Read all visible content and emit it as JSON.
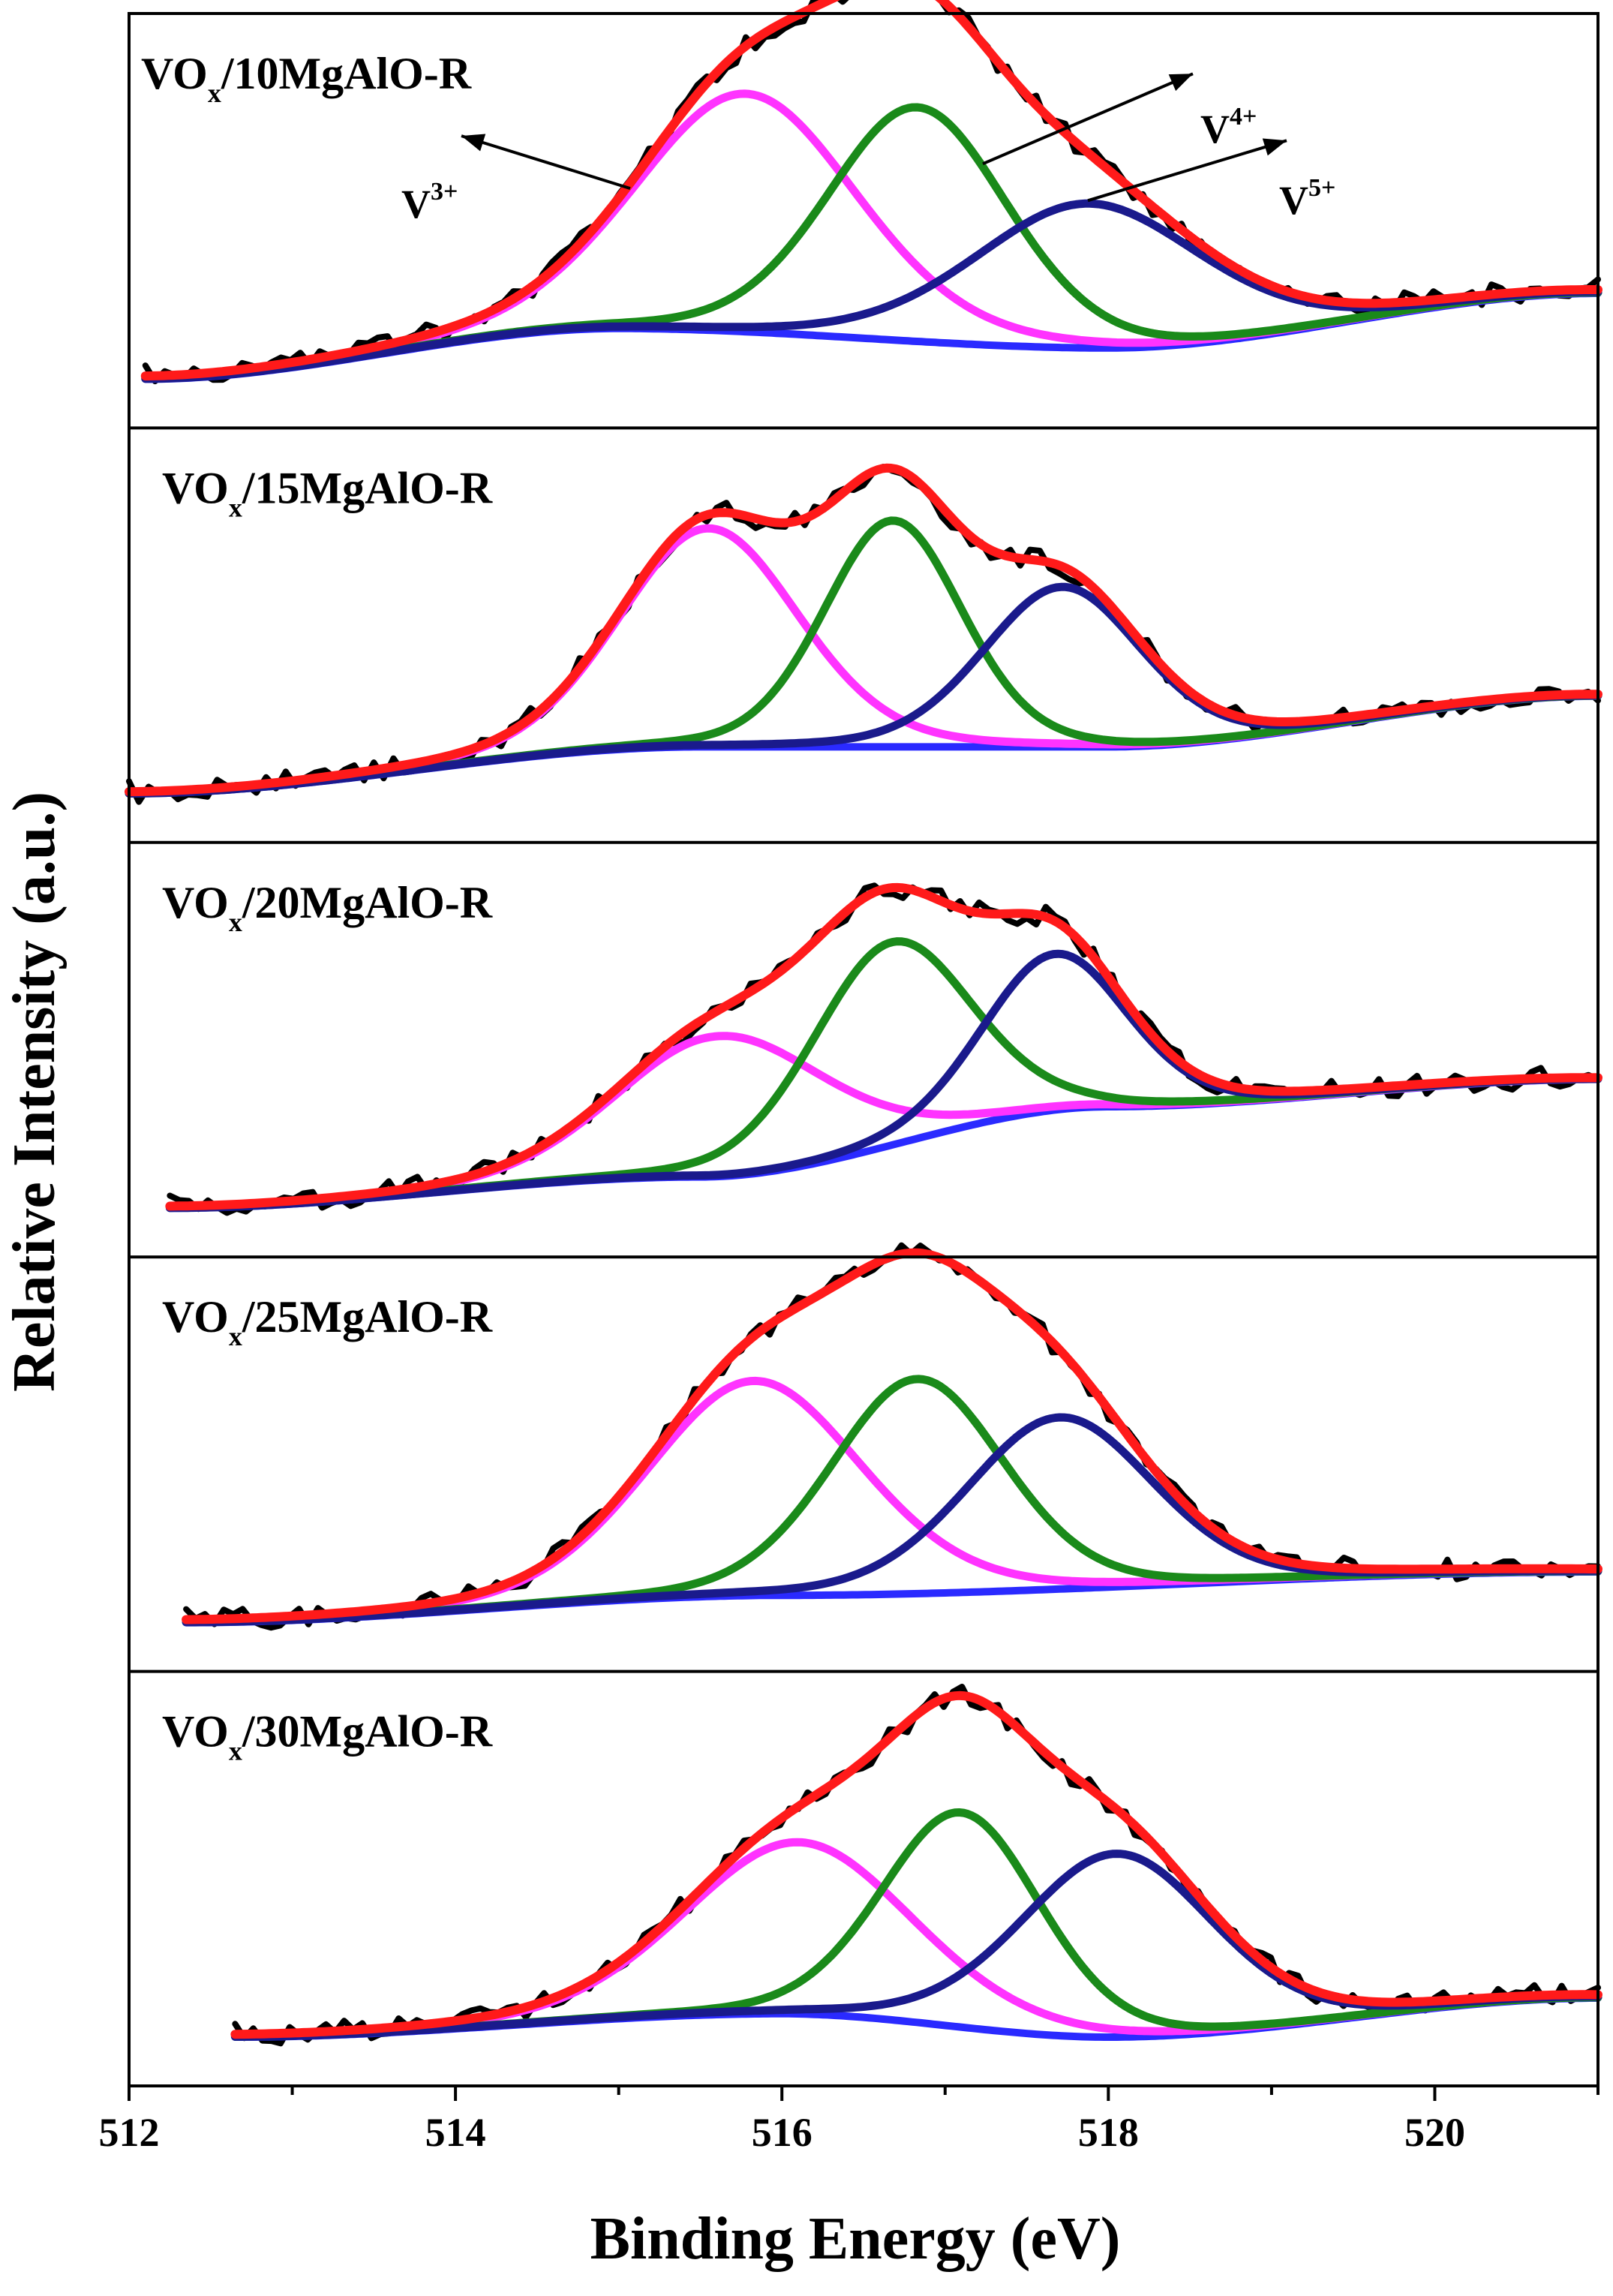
{
  "chart_data": {
    "type": "line",
    "xlabel": "Binding Energy (eV)",
    "ylabel": "Relative Intensity (a.u.)",
    "xlim": [
      512,
      521
    ],
    "xticks": [
      "512",
      "514",
      "516",
      "518",
      "520"
    ],
    "grid": false,
    "colors": {
      "raw": "#000000",
      "envelope": "#ff1a1a",
      "V3+": "#ff33ff",
      "V4+": "#1a8a1a",
      "V5+": "#1a1a8c",
      "background": "#2a2aff"
    },
    "annotations": [
      {
        "label": "V",
        "sup": "3+",
        "panel": 0,
        "peak": "V3+"
      },
      {
        "label": "V",
        "sup": "4+",
        "panel": 0,
        "peak": "V4+"
      },
      {
        "label": "V",
        "sup": "5+",
        "panel": 0,
        "peak": "V5+"
      }
    ],
    "panels": [
      {
        "title_main": "VO",
        "title_sub": "x",
        "title_rest": "/10MgAlO-R",
        "x_start": 512.1,
        "background": [
          [
            512.1,
            0.0
          ],
          [
            515.0,
            0.13
          ],
          [
            518.0,
            0.08
          ],
          [
            521.0,
            0.22
          ]
        ],
        "peaks": [
          {
            "name": "V3+",
            "center": 515.78,
            "height": 0.61,
            "fwhm": 1.6
          },
          {
            "name": "V4+",
            "center": 516.83,
            "height": 0.6,
            "fwhm": 1.3
          },
          {
            "name": "V5+",
            "center": 517.88,
            "height": 0.37,
            "fwhm": 1.65
          }
        ]
      },
      {
        "title_main": "VO",
        "title_sub": "x",
        "title_rest": "/15MgAlO-R",
        "x_start": 512.0,
        "background": [
          [
            512.0,
            0.0
          ],
          [
            515.5,
            0.12
          ],
          [
            518.0,
            0.12
          ],
          [
            521.0,
            0.25
          ]
        ],
        "peaks": [
          {
            "name": "V3+",
            "center": 515.55,
            "height": 0.56,
            "fwhm": 1.3
          },
          {
            "name": "V4+",
            "center": 516.68,
            "height": 0.58,
            "fwhm": 1.0
          },
          {
            "name": "V5+",
            "center": 517.72,
            "height": 0.41,
            "fwhm": 1.15
          }
        ]
      },
      {
        "title_main": "VO",
        "title_sub": "x",
        "title_rest": "/20MgAlO-R",
        "x_start": 512.25,
        "background": [
          [
            512.25,
            0.0
          ],
          [
            515.5,
            0.08
          ],
          [
            518.0,
            0.26
          ],
          [
            521.0,
            0.33
          ]
        ],
        "peaks": [
          {
            "name": "V3+",
            "center": 515.62,
            "height": 0.36,
            "fwhm": 1.5
          },
          {
            "name": "V4+",
            "center": 516.67,
            "height": 0.52,
            "fwhm": 1.15
          },
          {
            "name": "V5+",
            "center": 517.67,
            "height": 0.4,
            "fwhm": 1.05
          }
        ]
      },
      {
        "title_main": "VO",
        "title_sub": "x",
        "title_rest": "/25MgAlO-R",
        "x_start": 512.35,
        "background": [
          [
            512.35,
            0.0
          ],
          [
            516.0,
            0.07
          ],
          [
            521.0,
            0.13
          ]
        ],
        "peaks": [
          {
            "name": "V3+",
            "center": 515.83,
            "height": 0.55,
            "fwhm": 1.55
          },
          {
            "name": "V4+",
            "center": 516.83,
            "height": 0.55,
            "fwhm": 1.25
          },
          {
            "name": "V5+",
            "center": 517.7,
            "height": 0.44,
            "fwhm": 1.35
          }
        ]
      },
      {
        "title_main": "VO",
        "title_sub": "x",
        "title_rest": "/30MgAlO-R",
        "x_start": 512.65,
        "background": [
          [
            512.65,
            0.0
          ],
          [
            516.0,
            0.06
          ],
          [
            518.0,
            0.0
          ],
          [
            521.0,
            0.1
          ]
        ],
        "peaks": [
          {
            "name": "V3+",
            "center": 516.1,
            "height": 0.44,
            "fwhm": 1.65
          },
          {
            "name": "V4+",
            "center": 517.1,
            "height": 0.55,
            "fwhm": 1.15
          },
          {
            "name": "V5+",
            "center": 518.05,
            "height": 0.47,
            "fwhm": 1.4
          }
        ]
      }
    ]
  }
}
